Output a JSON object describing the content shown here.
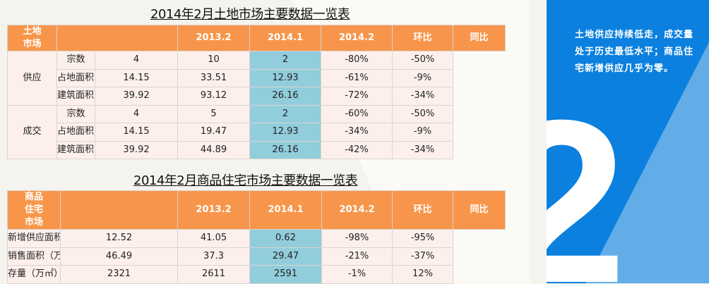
{
  "table1": {
    "title": "2014年2月土地市场主要数据一览表",
    "category": "土地市场",
    "headers": [
      "2013.2",
      "2014.1",
      "2014.2",
      "环比",
      "同比"
    ],
    "groups": [
      {
        "name": "供应",
        "rows": [
          {
            "label": "宗数",
            "values": [
              "4",
              "10",
              "2",
              "-80%",
              "-50%"
            ]
          },
          {
            "label": "占地面积（万㎡）",
            "values": [
              "14.15",
              "33.51",
              "12.93",
              "-61%",
              "-9%"
            ]
          },
          {
            "label": "建筑面积（万㎡）",
            "values": [
              "39.92",
              "93.12",
              "26.16",
              "-72%",
              "-34%"
            ]
          }
        ]
      },
      {
        "name": "成交",
        "rows": [
          {
            "label": "宗数",
            "values": [
              "4",
              "5",
              "2",
              "-60%",
              "-50%"
            ]
          },
          {
            "label": "占地面积（万㎡）",
            "values": [
              "14.15",
              "19.47",
              "12.93",
              "-34%",
              "-9%"
            ]
          },
          {
            "label": "建筑面积（万㎡）",
            "values": [
              "39.92",
              "44.89",
              "26.16",
              "-42%",
              "-34%"
            ]
          }
        ]
      }
    ]
  },
  "table2": {
    "title": "2014年2月商品住宅市场主要数据一览表",
    "category": "商品住宅市场",
    "headers": [
      "2013.2",
      "2014.1",
      "2014.2",
      "环比",
      "同比"
    ],
    "rows": [
      {
        "label": "新增供应面积（万㎡）",
        "values": [
          "12.52",
          "41.05",
          "0.62",
          "-98%",
          "-95%"
        ]
      },
      {
        "label": "销售面积（万㎡）",
        "values": [
          "46.49",
          "37.3",
          "29.47",
          "-21%",
          "-37%"
        ]
      },
      {
        "label": "存量（万㎡）",
        "values": [
          "2321",
          "2611",
          "2591",
          "-1%",
          "12%"
        ]
      }
    ]
  },
  "panel": {
    "summary": "土地供应持续低走，成交量处于历史最低水平；商品住宅新增供应几乎为零。",
    "section_number": "2"
  },
  "colors": {
    "header": "#f7964a",
    "highlight": "#92cddc",
    "cell": "#fdf0ec",
    "panel": "#0b80de",
    "panel_accent": "#62ade8"
  }
}
